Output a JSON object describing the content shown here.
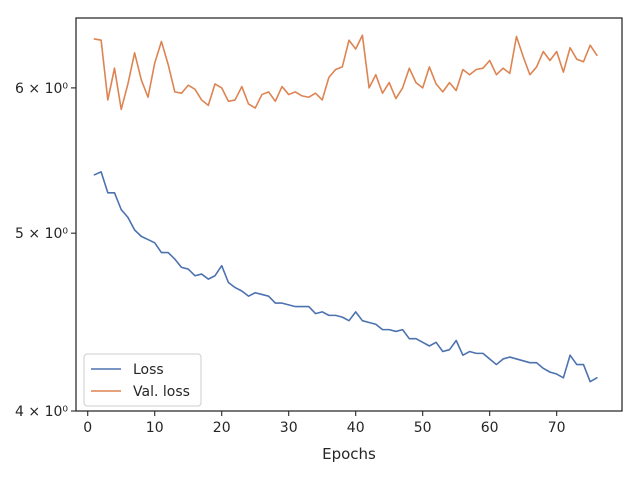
{
  "chart_data": {
    "type": "line",
    "xlabel": "Epochs",
    "ylabel": "",
    "yscale": "log",
    "xlim": [
      -1.75,
      79.75
    ],
    "ylim": [
      4.0,
      6.55
    ],
    "x_ticks": [
      0,
      10,
      20,
      30,
      40,
      50,
      60,
      70
    ],
    "y_ticks": [
      {
        "value": 4,
        "label": "4 × 10⁰"
      },
      {
        "value": 5,
        "label": "5 × 10⁰"
      },
      {
        "value": 6,
        "label": "6 × 10⁰"
      }
    ],
    "grid": false,
    "legend_position": "lower-left",
    "series": [
      {
        "name": "Loss",
        "color": "#4c72b0",
        "x": [
          1,
          2,
          3,
          4,
          5,
          6,
          7,
          8,
          9,
          10,
          11,
          12,
          13,
          14,
          15,
          16,
          17,
          18,
          19,
          20,
          21,
          22,
          23,
          24,
          25,
          26,
          27,
          28,
          29,
          30,
          31,
          32,
          33,
          34,
          35,
          36,
          37,
          38,
          39,
          40,
          41,
          42,
          43,
          44,
          45,
          46,
          47,
          48,
          49,
          50,
          51,
          52,
          53,
          54,
          55,
          56,
          57,
          58,
          59,
          60,
          61,
          62,
          63,
          64,
          65,
          66,
          67,
          68,
          69,
          70,
          71,
          72,
          73,
          74,
          75,
          76
        ],
        "values": [
          5.38,
          5.4,
          5.26,
          5.26,
          5.15,
          5.1,
          5.02,
          4.98,
          4.96,
          4.94,
          4.88,
          4.88,
          4.84,
          4.79,
          4.78,
          4.74,
          4.75,
          4.72,
          4.74,
          4.8,
          4.7,
          4.67,
          4.65,
          4.62,
          4.64,
          4.63,
          4.62,
          4.58,
          4.58,
          4.57,
          4.56,
          4.56,
          4.56,
          4.52,
          4.53,
          4.51,
          4.51,
          4.5,
          4.48,
          4.53,
          4.48,
          4.47,
          4.46,
          4.43,
          4.43,
          4.42,
          4.43,
          4.38,
          4.38,
          4.36,
          4.34,
          4.36,
          4.31,
          4.32,
          4.37,
          4.29,
          4.31,
          4.3,
          4.3,
          4.27,
          4.24,
          4.27,
          4.28,
          4.27,
          4.26,
          4.25,
          4.25,
          4.22,
          4.2,
          4.19,
          4.17,
          4.29,
          4.24,
          4.24,
          4.15,
          4.17
        ]
      },
      {
        "name": "Val. loss",
        "color": "#dd8452",
        "x": [
          1,
          2,
          3,
          4,
          5,
          6,
          7,
          8,
          9,
          10,
          11,
          12,
          13,
          14,
          15,
          16,
          17,
          18,
          19,
          20,
          21,
          22,
          23,
          24,
          25,
          26,
          27,
          28,
          29,
          30,
          31,
          32,
          33,
          34,
          35,
          36,
          37,
          38,
          39,
          40,
          41,
          42,
          43,
          44,
          45,
          46,
          47,
          48,
          49,
          50,
          51,
          52,
          53,
          54,
          55,
          56,
          57,
          58,
          59,
          60,
          61,
          62,
          63,
          64,
          65,
          66,
          67,
          68,
          69,
          70,
          71,
          72,
          73,
          74,
          75,
          76
        ],
        "values": [
          6.38,
          6.37,
          5.91,
          6.15,
          5.84,
          6.03,
          6.27,
          6.06,
          5.93,
          6.19,
          6.36,
          6.18,
          5.97,
          5.96,
          6.02,
          5.99,
          5.91,
          5.87,
          6.03,
          6.0,
          5.9,
          5.91,
          6.01,
          5.88,
          5.85,
          5.95,
          5.97,
          5.9,
          6.01,
          5.95,
          5.97,
          5.94,
          5.93,
          5.96,
          5.91,
          6.08,
          6.14,
          6.16,
          6.37,
          6.3,
          6.41,
          6.0,
          6.1,
          5.96,
          6.04,
          5.92,
          6.0,
          6.15,
          6.04,
          6.0,
          6.16,
          6.03,
          5.97,
          6.04,
          5.98,
          6.14,
          6.1,
          6.14,
          6.15,
          6.21,
          6.1,
          6.15,
          6.11,
          6.4,
          6.24,
          6.1,
          6.16,
          6.28,
          6.21,
          6.28,
          6.12,
          6.31,
          6.22,
          6.2,
          6.33,
          6.25
        ]
      }
    ]
  }
}
